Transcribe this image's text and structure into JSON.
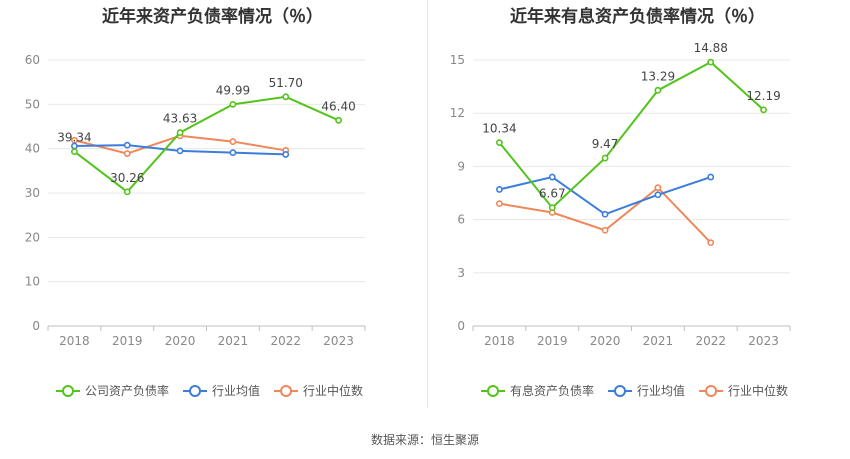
{
  "chart_data": [
    {
      "type": "line",
      "title": "近年来资产负债率情况（％）",
      "categories": [
        "2018",
        "2019",
        "2020",
        "2021",
        "2022",
        "2023"
      ],
      "ylim": [
        0,
        60
      ],
      "yticks": [
        0,
        10,
        20,
        30,
        40,
        50,
        60
      ],
      "grid": true,
      "legend_position": "bottom",
      "series": [
        {
          "name": "公司资产负债率",
          "color": "#52c41a",
          "labeled": true,
          "values": [
            39.34,
            30.26,
            43.63,
            49.99,
            51.7,
            46.4
          ],
          "labels": [
            "39.34",
            "30.26",
            "43.63",
            "49.99",
            "51.70",
            "46.40"
          ]
        },
        {
          "name": "行业均值",
          "color": "#3b7ddd",
          "labeled": false,
          "values": [
            40.6,
            40.8,
            39.5,
            39.1,
            38.7,
            null
          ]
        },
        {
          "name": "行业中位数",
          "color": "#f0875a",
          "labeled": false,
          "values": [
            41.9,
            38.9,
            42.9,
            41.6,
            39.6,
            null
          ]
        }
      ]
    },
    {
      "type": "line",
      "title": "近年来有息资产负债率情况（％）",
      "categories": [
        "2018",
        "2019",
        "2020",
        "2021",
        "2022",
        "2023"
      ],
      "ylim": [
        0,
        15
      ],
      "yticks": [
        0,
        3,
        6,
        9,
        12,
        15
      ],
      "grid": true,
      "legend_position": "bottom",
      "series": [
        {
          "name": "有息资产负债率",
          "color": "#52c41a",
          "labeled": true,
          "values": [
            10.34,
            6.67,
            9.47,
            13.29,
            14.88,
            12.19
          ],
          "labels": [
            "10.34",
            "6.67",
            "9.47",
            "13.29",
            "14.88",
            "12.19"
          ]
        },
        {
          "name": "行业均值",
          "color": "#3b7ddd",
          "labeled": false,
          "values": [
            7.7,
            8.4,
            6.3,
            7.4,
            8.4,
            null
          ]
        },
        {
          "name": "行业中位数",
          "color": "#f0875a",
          "labeled": false,
          "values": [
            6.9,
            6.4,
            5.4,
            7.8,
            4.7,
            null
          ]
        }
      ]
    }
  ],
  "footer": {
    "source": "数据来源：恒生聚源"
  }
}
